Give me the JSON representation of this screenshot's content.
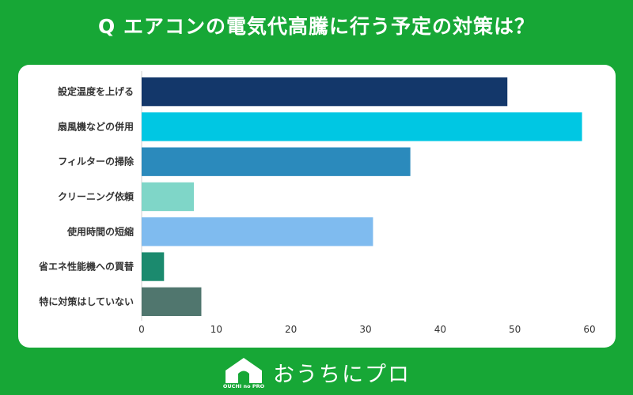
{
  "page": {
    "title": "Q エアコンの電気代高騰に行う予定の対策は？"
  },
  "footer": {
    "logo_icon": "house-logo-icon",
    "logo_text": "OUCHI no PRO",
    "brand": "おうちにプロ"
  },
  "chart_data": {
    "type": "bar",
    "orientation": "horizontal",
    "categories": [
      "設定温度を上げる",
      "扇風機などの併用",
      "フィルターの掃除",
      "クリーニング依頼",
      "使用時間の短縮",
      "省エネ性能機への買替",
      "特に対策はしていない"
    ],
    "values": [
      49,
      59,
      36,
      7,
      31,
      3,
      8
    ],
    "colors": [
      "#13376a",
      "#00c7e3",
      "#2b8abc",
      "#7fd6c8",
      "#7fbbef",
      "#1b8a6e",
      "#50766e"
    ],
    "xlim": [
      0,
      60
    ],
    "xticks": [
      "0",
      "10",
      "20",
      "30",
      "40",
      "50",
      "60"
    ],
    "grid": false,
    "legend": "none"
  }
}
